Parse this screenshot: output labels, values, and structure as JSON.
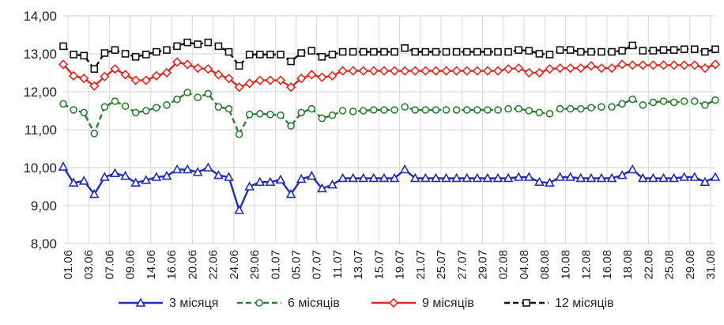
{
  "chart_data": {
    "type": "line",
    "ylim": [
      8.0,
      14.0
    ],
    "yticks": [
      "8,00",
      "9,00",
      "10,00",
      "11,00",
      "12,00",
      "13,00",
      "14,00"
    ],
    "grid": true,
    "legend_position": "bottom",
    "x_labels": [
      "01.06",
      "03.06",
      "07.06",
      "09.06",
      "14.06",
      "16.06",
      "20.06",
      "22.06",
      "24.06",
      "29.06",
      "01.07",
      "05.07",
      "07.07",
      "11.07",
      "13.07",
      "15.07",
      "19.07",
      "21.07",
      "25.07",
      "27.07",
      "29.07",
      "02.08",
      "04.08",
      "08.08",
      "10.08",
      "12.08",
      "16.08",
      "18.08",
      "22.08",
      "25.08",
      "29.08",
      "31.08"
    ],
    "series": [
      {
        "name": "3 місяця",
        "color": "#1f2db5",
        "dash": "solid",
        "marker": "triangle",
        "values": [
          10.02,
          9.6,
          9.65,
          9.3,
          9.75,
          9.85,
          9.78,
          9.6,
          9.67,
          9.75,
          9.78,
          9.95,
          9.95,
          9.88,
          10.0,
          9.8,
          9.75,
          8.88,
          9.5,
          9.62,
          9.62,
          9.68,
          9.3,
          9.7,
          9.78,
          9.45,
          9.55,
          9.72,
          9.72,
          9.72,
          9.72,
          9.72,
          9.72,
          9.95,
          9.72,
          9.72,
          9.72,
          9.72,
          9.72,
          9.72,
          9.72,
          9.72,
          9.72,
          9.72,
          9.75,
          9.75,
          9.62,
          9.6,
          9.75,
          9.75,
          9.72,
          9.72,
          9.72,
          9.72,
          9.8,
          9.95,
          9.72,
          9.72,
          9.72,
          9.72,
          9.75,
          9.75,
          9.62,
          9.75
        ]
      },
      {
        "name": "6 місяців",
        "color": "#2e7d32",
        "dash": "dashed",
        "marker": "circle",
        "values": [
          11.68,
          11.52,
          11.45,
          10.9,
          11.6,
          11.75,
          11.62,
          11.45,
          11.5,
          11.58,
          11.65,
          11.8,
          11.98,
          11.85,
          11.95,
          11.6,
          11.55,
          10.88,
          11.4,
          11.42,
          11.4,
          11.38,
          11.1,
          11.45,
          11.55,
          11.3,
          11.38,
          11.5,
          11.48,
          11.5,
          11.52,
          11.52,
          11.52,
          11.6,
          11.52,
          11.52,
          11.52,
          11.52,
          11.52,
          11.52,
          11.52,
          11.52,
          11.52,
          11.55,
          11.55,
          11.5,
          11.45,
          11.42,
          11.55,
          11.55,
          11.55,
          11.58,
          11.6,
          11.6,
          11.68,
          11.8,
          11.65,
          11.72,
          11.75,
          11.72,
          11.75,
          11.75,
          11.65,
          11.78
        ]
      },
      {
        "name": "9 місяців",
        "color": "#e0281f",
        "dash": "solid",
        "marker": "diamond",
        "values": [
          12.72,
          12.42,
          12.35,
          12.15,
          12.4,
          12.6,
          12.45,
          12.3,
          12.3,
          12.42,
          12.5,
          12.78,
          12.72,
          12.62,
          12.6,
          12.45,
          12.35,
          12.12,
          12.22,
          12.3,
          12.3,
          12.3,
          12.12,
          12.35,
          12.45,
          12.38,
          12.42,
          12.55,
          12.55,
          12.55,
          12.55,
          12.55,
          12.55,
          12.55,
          12.55,
          12.55,
          12.55,
          12.55,
          12.55,
          12.55,
          12.55,
          12.55,
          12.55,
          12.6,
          12.62,
          12.5,
          12.5,
          12.6,
          12.62,
          12.62,
          12.62,
          12.68,
          12.62,
          12.62,
          12.72,
          12.7,
          12.7,
          12.7,
          12.7,
          12.7,
          12.7,
          12.7,
          12.62,
          12.72
        ]
      },
      {
        "name": "12 місяців",
        "color": "#111111",
        "dash": "dashed",
        "marker": "square",
        "values": [
          13.2,
          12.98,
          12.95,
          12.6,
          13.02,
          13.1,
          13.0,
          12.92,
          12.98,
          13.05,
          13.1,
          13.2,
          13.3,
          13.25,
          13.3,
          13.2,
          13.05,
          12.68,
          12.98,
          12.98,
          12.98,
          12.98,
          12.8,
          13.02,
          13.08,
          12.92,
          12.98,
          13.05,
          13.05,
          13.05,
          13.05,
          13.05,
          13.05,
          13.15,
          13.05,
          13.05,
          13.05,
          13.05,
          13.05,
          13.05,
          13.05,
          13.05,
          13.05,
          13.05,
          13.1,
          13.08,
          13.0,
          12.98,
          13.1,
          13.1,
          13.05,
          13.05,
          13.05,
          13.05,
          13.08,
          13.22,
          13.08,
          13.08,
          13.1,
          13.1,
          13.12,
          13.12,
          13.05,
          13.12
        ]
      }
    ]
  }
}
